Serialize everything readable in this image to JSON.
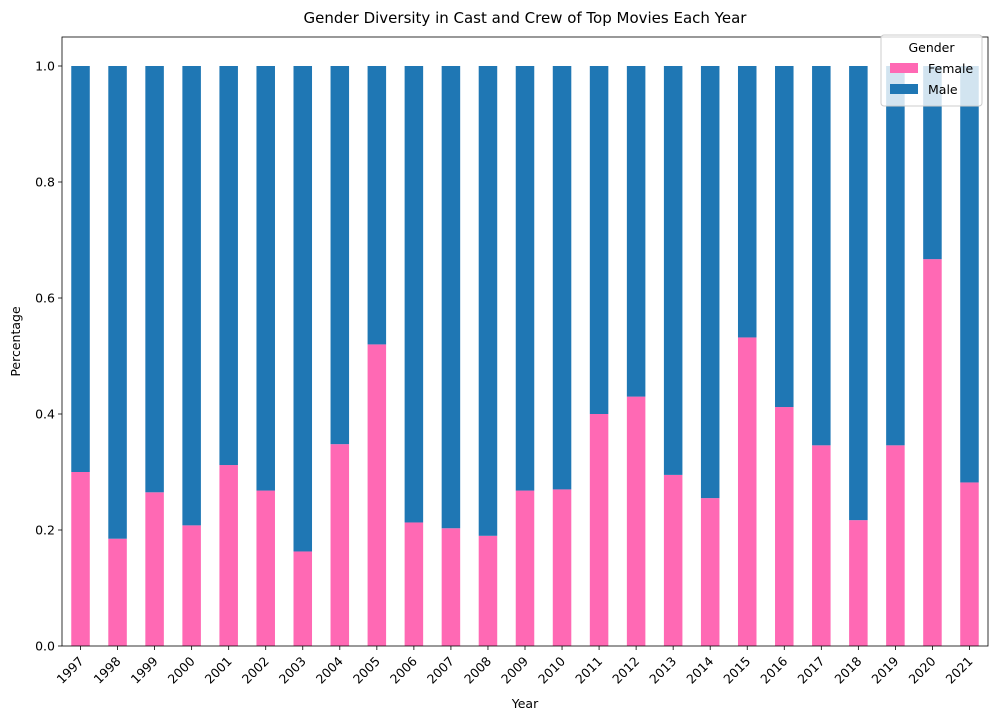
{
  "chart_data": {
    "type": "bar",
    "stacked": true,
    "title": "Gender Diversity in Cast and Crew of Top Movies Each Year",
    "xlabel": "Year",
    "ylabel": "Percentage",
    "ylim": [
      0,
      1.05
    ],
    "yticks": [
      0.0,
      0.2,
      0.4,
      0.6,
      0.8,
      1.0
    ],
    "ytick_labels": [
      "0.0",
      "0.2",
      "0.4",
      "0.6",
      "0.8",
      "1.0"
    ],
    "categories": [
      "1997",
      "1998",
      "1999",
      "2000",
      "2001",
      "2002",
      "2003",
      "2004",
      "2005",
      "2006",
      "2007",
      "2008",
      "2009",
      "2010",
      "2011",
      "2012",
      "2013",
      "2014",
      "2015",
      "2016",
      "2017",
      "2018",
      "2019",
      "2020",
      "2021"
    ],
    "series": [
      {
        "name": "Female",
        "color": "#ff69b4",
        "values": [
          0.3,
          0.185,
          0.265,
          0.208,
          0.312,
          0.268,
          0.163,
          0.348,
          0.52,
          0.213,
          0.203,
          0.19,
          0.268,
          0.27,
          0.4,
          0.43,
          0.295,
          0.255,
          0.532,
          0.412,
          0.346,
          0.217,
          0.346,
          0.667,
          0.282
        ]
      },
      {
        "name": "Male",
        "color": "#1f77b4",
        "values": [
          0.7,
          0.815,
          0.735,
          0.792,
          0.688,
          0.732,
          0.837,
          0.652,
          0.48,
          0.787,
          0.797,
          0.81,
          0.732,
          0.73,
          0.6,
          0.57,
          0.705,
          0.745,
          0.468,
          0.588,
          0.654,
          0.783,
          0.654,
          0.333,
          0.718
        ]
      }
    ],
    "grid": false,
    "legend": {
      "title": "Gender",
      "placement": "top-right"
    }
  }
}
